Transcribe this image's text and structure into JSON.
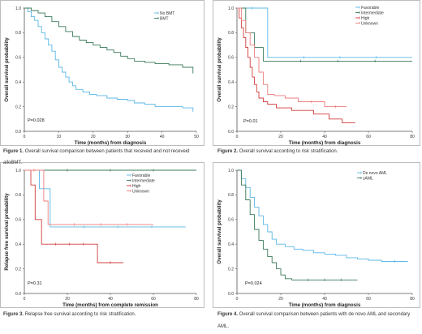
{
  "colors": {
    "blue": "#5bb8e6",
    "green": "#3a7a5a",
    "red": "#d23c3c",
    "pink": "#ee7e7e",
    "axis": "#555555"
  },
  "captions": [
    {
      "label": "Figure 1.",
      "text": "Overall survival comparison between patients that receveid and not receveid",
      "cont": "alloBMT."
    },
    {
      "label": "Figure 2.",
      "text": "Overall survival according to risk stratification.",
      "cont": ""
    },
    {
      "label": "Figure 3.",
      "text": "Relapse free survival according to risk stratification.",
      "cont": ""
    },
    {
      "label": "Figure 4.",
      "text": "Overall survival comparison between patients with de novo AML and secondary",
      "cont": "AML."
    }
  ],
  "chart_data": [
    {
      "type": "line",
      "ylabel": "Overall survival probability",
      "xlabel": "Time (months) from diagnosis",
      "xlim": [
        0,
        50
      ],
      "ylim": [
        0,
        1
      ],
      "xticks": [
        "0",
        "10",
        "20",
        "30",
        "40",
        "50"
      ],
      "yticks": [
        "0.0",
        "0.2",
        "0.4",
        "0.6",
        "0.8",
        "1.0"
      ],
      "pvalue": "P=0.028",
      "legend": [
        "No BMT",
        "BMT"
      ],
      "series": [
        {
          "name": "No BMT",
          "color": "blue",
          "points": [
            [
              0,
              1
            ],
            [
              1,
              0.97
            ],
            [
              2,
              0.93
            ],
            [
              3,
              0.9
            ],
            [
              4,
              0.85
            ],
            [
              5,
              0.8
            ],
            [
              6,
              0.75
            ],
            [
              7,
              0.7
            ],
            [
              8,
              0.65
            ],
            [
              9,
              0.58
            ],
            [
              10,
              0.52
            ],
            [
              11,
              0.48
            ],
            [
              12,
              0.44
            ],
            [
              13,
              0.4
            ],
            [
              14,
              0.37
            ],
            [
              15,
              0.34
            ],
            [
              17,
              0.32
            ],
            [
              19,
              0.3
            ],
            [
              21,
              0.29
            ],
            [
              24,
              0.27
            ],
            [
              27,
              0.26
            ],
            [
              30,
              0.25
            ],
            [
              32,
              0.23
            ],
            [
              35,
              0.22
            ],
            [
              38,
              0.2
            ],
            [
              42,
              0.2
            ],
            [
              46,
              0.19
            ],
            [
              49,
              0.16
            ]
          ]
        },
        {
          "name": "BMT",
          "color": "green",
          "points": [
            [
              0,
              1
            ],
            [
              2,
              0.98
            ],
            [
              4,
              0.96
            ],
            [
              6,
              0.93
            ],
            [
              8,
              0.89
            ],
            [
              10,
              0.85
            ],
            [
              12,
              0.81
            ],
            [
              14,
              0.77
            ],
            [
              16,
              0.74
            ],
            [
              18,
              0.72
            ],
            [
              20,
              0.7
            ],
            [
              22,
              0.68
            ],
            [
              24,
              0.66
            ],
            [
              26,
              0.64
            ],
            [
              28,
              0.61
            ],
            [
              30,
              0.59
            ],
            [
              32,
              0.57
            ],
            [
              35,
              0.56
            ],
            [
              38,
              0.55
            ],
            [
              42,
              0.54
            ],
            [
              46,
              0.52
            ],
            [
              49,
              0.47
            ]
          ]
        }
      ]
    },
    {
      "type": "line",
      "ylabel": "Overall survival probability",
      "xlabel": "Time (months) from diagnosis",
      "xlim": [
        0,
        80
      ],
      "ylim": [
        0,
        1
      ],
      "xticks": [
        "0",
        "20",
        "40",
        "60",
        "80"
      ],
      "yticks": [
        "0.0",
        "0.2",
        "0.4",
        "0.6",
        "0.8",
        "1.0"
      ],
      "pvalue": "P=0.01",
      "legend": [
        "Favorable",
        "Intermediate",
        "High",
        "Unknown"
      ],
      "series": [
        {
          "name": "Favorable",
          "color": "blue",
          "points": [
            [
              0,
              1
            ],
            [
              14,
              1
            ],
            [
              14,
              0.6
            ],
            [
              80,
              0.6
            ]
          ]
        },
        {
          "name": "Intermediate",
          "color": "green",
          "points": [
            [
              0,
              1
            ],
            [
              4,
              1
            ],
            [
              4,
              0.8
            ],
            [
              8,
              0.8
            ],
            [
              8,
              0.68
            ],
            [
              12,
              0.68
            ],
            [
              12,
              0.57
            ],
            [
              80,
              0.57
            ]
          ]
        },
        {
          "name": "High",
          "color": "red",
          "points": [
            [
              0,
              1
            ],
            [
              1,
              0.92
            ],
            [
              2,
              0.84
            ],
            [
              3,
              0.76
            ],
            [
              4,
              0.68
            ],
            [
              5,
              0.6
            ],
            [
              6,
              0.52
            ],
            [
              7,
              0.44
            ],
            [
              8,
              0.38
            ],
            [
              9,
              0.32
            ],
            [
              10,
              0.27
            ],
            [
              12,
              0.24
            ],
            [
              14,
              0.22
            ],
            [
              18,
              0.19
            ],
            [
              25,
              0.17
            ],
            [
              35,
              0.14
            ],
            [
              42,
              0.1
            ],
            [
              48,
              0.07
            ],
            [
              54,
              0.07
            ]
          ]
        },
        {
          "name": "Unknown",
          "color": "pink",
          "points": [
            [
              0,
              1
            ],
            [
              2,
              0.9
            ],
            [
              4,
              0.8
            ],
            [
              6,
              0.7
            ],
            [
              8,
              0.6
            ],
            [
              10,
              0.48
            ],
            [
              12,
              0.38
            ],
            [
              14,
              0.3
            ],
            [
              17,
              0.29
            ],
            [
              22,
              0.27
            ],
            [
              28,
              0.24
            ],
            [
              40,
              0.24
            ],
            [
              40,
              0.2
            ],
            [
              50,
              0.2
            ]
          ]
        }
      ]
    },
    {
      "type": "line",
      "ylabel": "Relapse free survival probability",
      "xlabel": "Time (months) from complete remission",
      "xlim": [
        0,
        80
      ],
      "ylim": [
        0,
        1
      ],
      "xticks": [
        "0",
        "20",
        "40",
        "60",
        "80"
      ],
      "yticks": [
        "0.0",
        "0.2",
        "0.4",
        "0.6",
        "0.8",
        "1.0"
      ],
      "pvalue": "P=0.31",
      "legend": [
        "Favorable",
        "Intermediate",
        "High",
        "Unknown"
      ],
      "series": [
        {
          "name": "Favorable",
          "color": "blue",
          "points": [
            [
              0,
              1
            ],
            [
              7,
              1
            ],
            [
              7,
              0.85
            ],
            [
              12,
              0.85
            ],
            [
              12,
              0.54
            ],
            [
              75,
              0.54
            ]
          ]
        },
        {
          "name": "Intermediate",
          "color": "green",
          "points": [
            [
              0,
              1
            ],
            [
              80,
              1
            ]
          ]
        },
        {
          "name": "High",
          "color": "red",
          "points": [
            [
              0,
              1
            ],
            [
              3,
              1
            ],
            [
              3,
              0.88
            ],
            [
              5,
              0.88
            ],
            [
              5,
              0.6
            ],
            [
              8,
              0.6
            ],
            [
              8,
              0.4
            ],
            [
              34,
              0.4
            ],
            [
              34,
              0.25
            ],
            [
              46,
              0.25
            ]
          ]
        },
        {
          "name": "Unknown",
          "color": "pink",
          "points": [
            [
              0,
              1
            ],
            [
              9,
              1
            ],
            [
              9,
              0.75
            ],
            [
              11,
              0.75
            ],
            [
              11,
              0.56
            ],
            [
              60,
              0.56
            ]
          ]
        }
      ]
    },
    {
      "type": "line",
      "ylabel": "Overall survival probability",
      "xlabel": "Time (months) from diagnosis",
      "xlim": [
        0,
        80
      ],
      "ylim": [
        0,
        1
      ],
      "xticks": [
        "0",
        "20",
        "40",
        "60",
        "80"
      ],
      "yticks": [
        "0.0",
        "0.2",
        "0.4",
        "0.6",
        "0.8",
        "1.0"
      ],
      "pvalue": "P=0.024",
      "legend": [
        "De novo AML",
        "sAML"
      ],
      "series": [
        {
          "name": "De novo AML",
          "color": "blue",
          "points": [
            [
              0,
              1
            ],
            [
              2,
              0.93
            ],
            [
              4,
              0.86
            ],
            [
              6,
              0.78
            ],
            [
              8,
              0.7
            ],
            [
              10,
              0.63
            ],
            [
              12,
              0.56
            ],
            [
              14,
              0.5
            ],
            [
              16,
              0.44
            ],
            [
              18,
              0.4
            ],
            [
              22,
              0.38
            ],
            [
              26,
              0.36
            ],
            [
              30,
              0.35
            ],
            [
              35,
              0.33
            ],
            [
              40,
              0.32
            ],
            [
              45,
              0.31
            ],
            [
              50,
              0.29
            ],
            [
              55,
              0.28
            ],
            [
              60,
              0.27
            ],
            [
              66,
              0.26
            ],
            [
              78,
              0.26
            ]
          ]
        },
        {
          "name": "sAML",
          "color": "green",
          "points": [
            [
              0,
              1
            ],
            [
              2,
              0.88
            ],
            [
              4,
              0.76
            ],
            [
              6,
              0.64
            ],
            [
              8,
              0.52
            ],
            [
              10,
              0.43
            ],
            [
              12,
              0.36
            ],
            [
              14,
              0.3
            ],
            [
              16,
              0.25
            ],
            [
              18,
              0.2
            ],
            [
              20,
              0.15
            ],
            [
              22,
              0.12
            ],
            [
              25,
              0.11
            ],
            [
              55,
              0.11
            ]
          ]
        }
      ]
    }
  ]
}
